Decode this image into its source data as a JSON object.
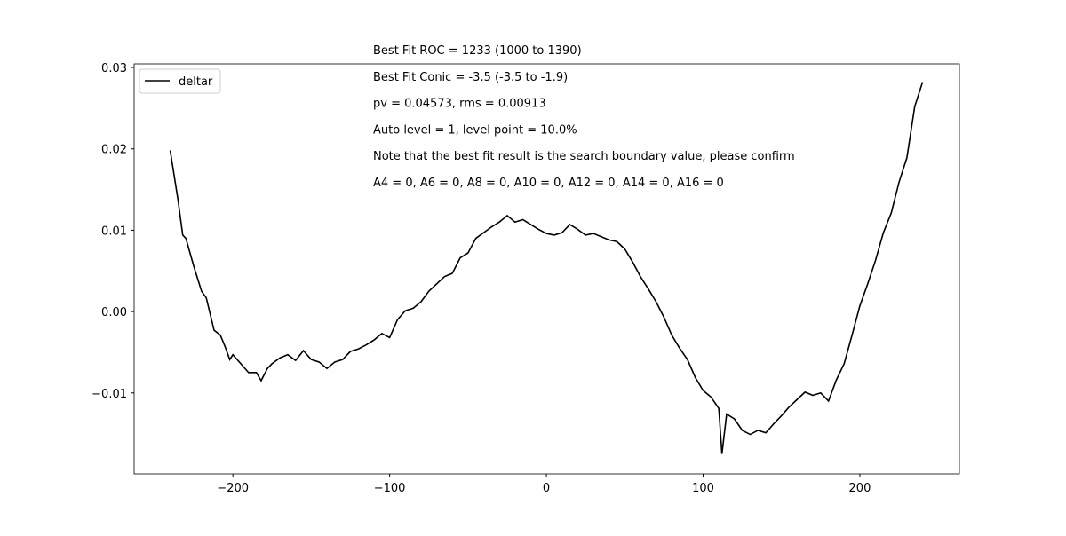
{
  "chart_data": {
    "type": "line",
    "annotations": [
      "Best Fit ROC = 1233  (1000 to 1390)",
      "Best Fit Conic = -3.5  (-3.5 to -1.9)",
      "pv = 0.04573, rms = 0.00913",
      "Auto level = 1, level point = 10.0%",
      "Note that the best fit result is the search boundary value, please confirm",
      "A4 = 0, A6 = 0, A8 = 0, A10 = 0, A12 = 0, A14 = 0, A16 = 0"
    ],
    "x": [
      -240,
      -235,
      -232,
      -230,
      -225,
      -220,
      -217,
      -215,
      -212,
      -208,
      -205,
      -202,
      -200,
      -195,
      -190,
      -185,
      -182,
      -178,
      -175,
      -170,
      -165,
      -160,
      -155,
      -150,
      -145,
      -140,
      -135,
      -130,
      -125,
      -120,
      -115,
      -110,
      -105,
      -100,
      -95,
      -90,
      -85,
      -80,
      -75,
      -70,
      -65,
      -60,
      -55,
      -50,
      -45,
      -40,
      -35,
      -30,
      -25,
      -20,
      -15,
      -10,
      -5,
      0,
      5,
      10,
      15,
      20,
      25,
      30,
      35,
      40,
      45,
      50,
      55,
      60,
      65,
      70,
      75,
      80,
      85,
      90,
      95,
      100,
      105,
      110,
      112,
      115,
      120,
      125,
      130,
      135,
      140,
      145,
      150,
      155,
      160,
      165,
      170,
      175,
      180,
      185,
      190,
      195,
      200,
      205,
      210,
      215,
      220,
      225,
      230,
      235,
      240
    ],
    "series": [
      {
        "name": "deltar",
        "color": "#000000",
        "values": [
          0.0198,
          0.0137,
          0.0094,
          0.009,
          0.0056,
          0.0025,
          0.0017,
          0.0001,
          -0.0023,
          -0.0029,
          -0.0043,
          -0.0059,
          -0.0053,
          -0.0064,
          -0.0075,
          -0.0075,
          -0.0085,
          -0.007,
          -0.0064,
          -0.0057,
          -0.0053,
          -0.006,
          -0.0048,
          -0.0059,
          -0.0062,
          -0.007,
          -0.0062,
          -0.0059,
          -0.0049,
          -0.0046,
          -0.0041,
          -0.0035,
          -0.0027,
          -0.0032,
          -0.001,
          0.0001,
          0.0004,
          0.0012,
          0.0025,
          0.0034,
          0.0043,
          0.0047,
          0.0066,
          0.0072,
          0.009,
          0.0097,
          0.0104,
          0.011,
          0.0118,
          0.011,
          0.0113,
          0.0107,
          0.0101,
          0.0096,
          0.0094,
          0.0097,
          0.0107,
          0.0101,
          0.0094,
          0.0096,
          0.0092,
          0.0088,
          0.0086,
          0.0077,
          0.0061,
          0.0043,
          0.0028,
          0.0012,
          -0.0007,
          -0.0029,
          -0.0045,
          -0.0059,
          -0.0081,
          -0.0097,
          -0.0105,
          -0.0119,
          -0.0175,
          -0.0126,
          -0.0132,
          -0.0146,
          -0.0151,
          -0.0146,
          -0.0149,
          -0.0138,
          -0.0128,
          -0.0117,
          -0.0108,
          -0.0099,
          -0.0103,
          -0.01,
          -0.011,
          -0.0084,
          -0.0064,
          -0.0029,
          0.0007,
          0.0034,
          0.0063,
          0.0097,
          0.0121,
          0.0159,
          0.0189,
          0.0252,
          0.0282
        ]
      }
    ],
    "xlim": [
      -263,
      263.5
    ],
    "xticks": [
      {
        "value": -200,
        "label": "−200"
      },
      {
        "value": -100,
        "label": "−100"
      },
      0,
      100,
      200
    ],
    "ylim": [
      -0.01995,
      0.03044
    ],
    "yticks": [
      {
        "value": -0.01,
        "label": "−0.01"
      },
      {
        "value": 0,
        "label": "0.00"
      },
      0.01,
      0.02,
      0.03
    ],
    "legend": "upper left"
  }
}
